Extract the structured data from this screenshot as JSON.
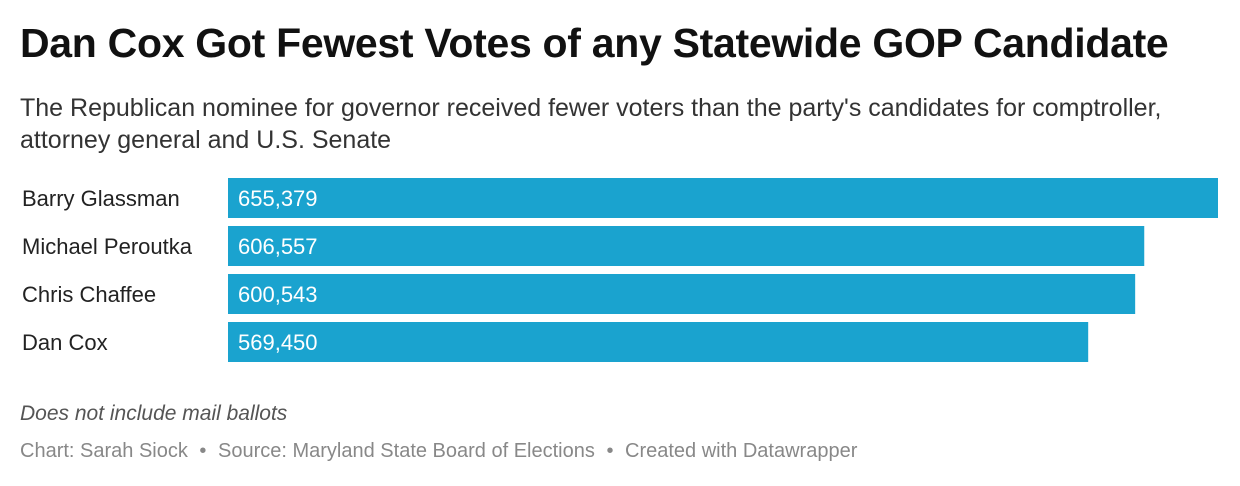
{
  "header": {
    "title": "Dan Cox Got Fewest Votes of any Statewide GOP Candidate",
    "subtitle": "The Republican nominee for governor received fewer voters than the party's candidates for comptroller, attorney general and U.S. Senate"
  },
  "chart_data": {
    "type": "bar",
    "orientation": "horizontal",
    "categories": [
      "Barry Glassman",
      "Michael Peroutka",
      "Chris Chaffee",
      "Dan Cox"
    ],
    "values": [
      655379,
      606557,
      600543,
      569450
    ],
    "value_labels": [
      "655,379",
      "606,557",
      "600,543",
      "569,450"
    ],
    "bar_color": "#1aa3cf",
    "xlim": [
      0,
      655379
    ],
    "grid": false,
    "legend": "none"
  },
  "footer": {
    "notes": "Does not include mail ballots",
    "credit": "Chart: Sarah Siock",
    "source": "Source: Maryland State Board of Elections",
    "tool": "Created with Datawrapper",
    "separator": "•"
  }
}
